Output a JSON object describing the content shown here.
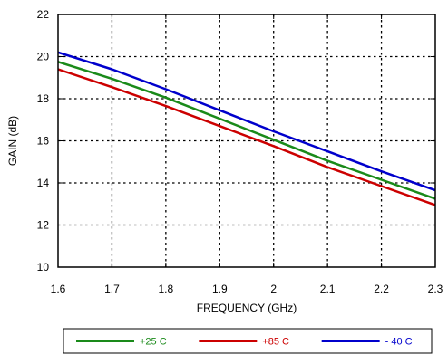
{
  "chart_data": {
    "type": "line",
    "title": "",
    "xlabel": "FREQUENCY (GHz)",
    "ylabel": "GAIN (dB)",
    "xlim": [
      1.6,
      2.3
    ],
    "ylim": [
      10,
      22
    ],
    "xticks": [
      1.6,
      1.7,
      1.8,
      1.9,
      2.0,
      2.1,
      2.2,
      2.3
    ],
    "xtick_labels": [
      "1.6",
      "1.7",
      "1.8",
      "1.9",
      "2",
      "2.1",
      "2.2",
      "2.3"
    ],
    "yticks": [
      10,
      12,
      14,
      16,
      18,
      20,
      22
    ],
    "ytick_labels": [
      "10",
      "12",
      "14",
      "16",
      "18",
      "20",
      "22"
    ],
    "grid": true,
    "legend_position": "bottom",
    "x": [
      1.6,
      1.7,
      1.8,
      1.9,
      2.0,
      2.1,
      2.2,
      2.3
    ],
    "series": [
      {
        "name": "+25 C",
        "color": "#1a8a1a",
        "values": [
          19.75,
          18.95,
          18.05,
          17.05,
          16.05,
          15.05,
          14.15,
          13.25
        ]
      },
      {
        "name": "+85 C",
        "color": "#cc0000",
        "values": [
          19.4,
          18.55,
          17.65,
          16.7,
          15.75,
          14.75,
          13.85,
          12.95
        ]
      },
      {
        "name": "- 40 C",
        "color": "#0000cc",
        "values": [
          20.2,
          19.4,
          18.45,
          17.45,
          16.45,
          15.5,
          14.55,
          13.65
        ]
      }
    ]
  }
}
